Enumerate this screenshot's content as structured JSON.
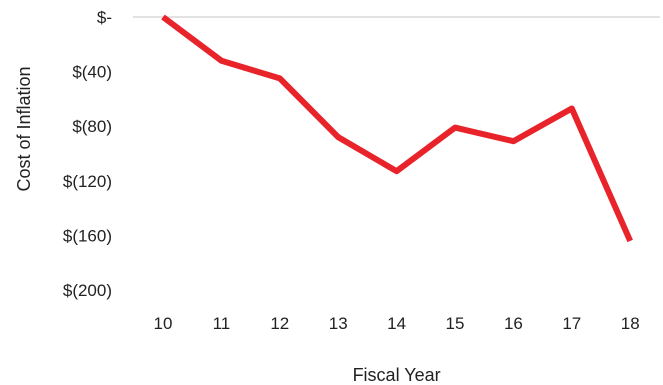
{
  "chart_data": {
    "type": "line",
    "title": "",
    "xlabel": "Fiscal Year",
    "ylabel": "Cost of Inflation",
    "categories": [
      "10",
      "11",
      "12",
      "13",
      "14",
      "15",
      "16",
      "17",
      "18"
    ],
    "y_tick_values": [
      0,
      -40,
      -80,
      -120,
      -160,
      -200
    ],
    "y_tick_labels": [
      "$-",
      "$(40)",
      "$(80)",
      "$(120)",
      "$(160)",
      "$(200)"
    ],
    "ylim": [
      -200,
      0
    ],
    "grid": false,
    "legend": "none",
    "series": [
      {
        "values": [
          0,
          -32,
          -45,
          -88,
          -113,
          -81,
          -91,
          -67,
          -164
        ],
        "color": "#e8232a"
      }
    ],
    "baseline_color": "#d9d9d9"
  }
}
